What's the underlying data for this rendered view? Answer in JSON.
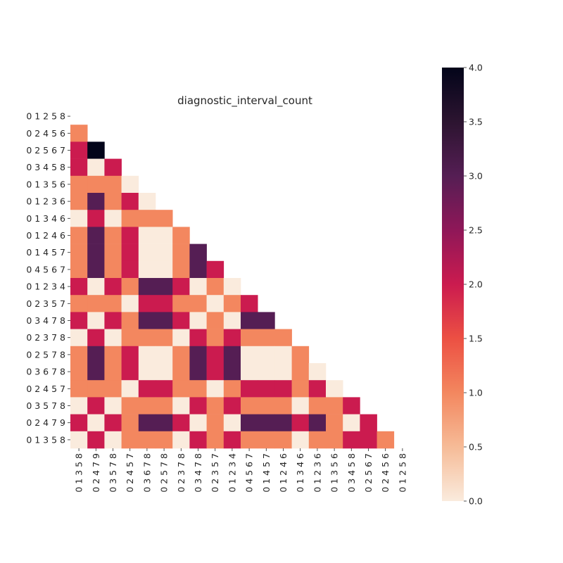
{
  "chart_data": {
    "type": "heatmap",
    "title": "diagnostic_interval_count",
    "xlabel": "",
    "ylabel": "",
    "y_labels": [
      "0 1 2 5 8",
      "0 2 4 5 6",
      "0 2 5 6 7",
      "0 3 4 5 8",
      "0 1 3 5 6",
      "0 1 2 3 6",
      "0 1 3 4 6",
      "0 1 2 4 6",
      "0 1 4 5 7",
      "0 4 5 6 7",
      "0 1 2 3 4",
      "0 2 3 5 7",
      "0 3 4 7 8",
      "0 2 3 7 8",
      "0 2 5 7 8",
      "0 3 6 7 8",
      "0 2 4 5 7",
      "0 3 5 7 8",
      "0 2 4 7 9",
      "0 1 3 5 8"
    ],
    "x_labels": [
      "0 1 3 5 8",
      "0 2 4 7 9",
      "0 3 5 7 8",
      "0 2 4 5 7",
      "0 3 6 7 8",
      "0 2 5 7 8",
      "0 2 3 7 8",
      "0 3 4 7 8",
      "0 2 3 5 7",
      "0 1 2 3 4",
      "0 4 5 6 7",
      "0 1 4 5 7",
      "0 1 2 4 6",
      "0 1 3 4 6",
      "0 1 2 3 6",
      "0 1 3 5 6",
      "0 3 4 5 8",
      "0 2 5 6 7",
      "0 2 4 5 6",
      "0 1 2 5 8"
    ],
    "values": [
      [],
      [
        1
      ],
      [
        2,
        4
      ],
      [
        2,
        0,
        2
      ],
      [
        1,
        1,
        1,
        0
      ],
      [
        1,
        3,
        1,
        2,
        0
      ],
      [
        0,
        2,
        0,
        1,
        1,
        1
      ],
      [
        1,
        3,
        1,
        2,
        0,
        0,
        1
      ],
      [
        1,
        3,
        1,
        2,
        0,
        0,
        1,
        3
      ],
      [
        1,
        3,
        1,
        2,
        0,
        0,
        1,
        3,
        2
      ],
      [
        2,
        0,
        2,
        1,
        3,
        3,
        2,
        0,
        1,
        0
      ],
      [
        1,
        1,
        1,
        0,
        2,
        2,
        1,
        1,
        0,
        1,
        2
      ],
      [
        2,
        0,
        2,
        1,
        3,
        3,
        2,
        0,
        1,
        0,
        3,
        3
      ],
      [
        0,
        2,
        0,
        1,
        1,
        1,
        0,
        2,
        1,
        2,
        1,
        1,
        1
      ],
      [
        1,
        3,
        1,
        2,
        0,
        0,
        1,
        3,
        2,
        3,
        0,
        0,
        0,
        1
      ],
      [
        1,
        3,
        1,
        2,
        0,
        0,
        1,
        3,
        2,
        3,
        0,
        0,
        0,
        1,
        0
      ],
      [
        1,
        1,
        1,
        0,
        2,
        2,
        1,
        1,
        0,
        1,
        2,
        2,
        2,
        1,
        2,
        0
      ],
      [
        0,
        2,
        0,
        1,
        1,
        1,
        0,
        2,
        1,
        2,
        1,
        1,
        1,
        0,
        1,
        1,
        2
      ],
      [
        2,
        0,
        2,
        1,
        3,
        3,
        2,
        0,
        1,
        0,
        3,
        3,
        3,
        2,
        3,
        1,
        0,
        2
      ],
      [
        0,
        2,
        0,
        1,
        1,
        1,
        0,
        2,
        1,
        2,
        1,
        1,
        1,
        0,
        1,
        1,
        2,
        2,
        1
      ]
    ],
    "colorbar": {
      "min": 0,
      "max": 4,
      "ticks": [
        "0.0",
        "0.5",
        "1.0",
        "1.5",
        "2.0",
        "2.5",
        "3.0",
        "3.5",
        "4.0"
      ],
      "colormap": "rocket_r"
    }
  }
}
